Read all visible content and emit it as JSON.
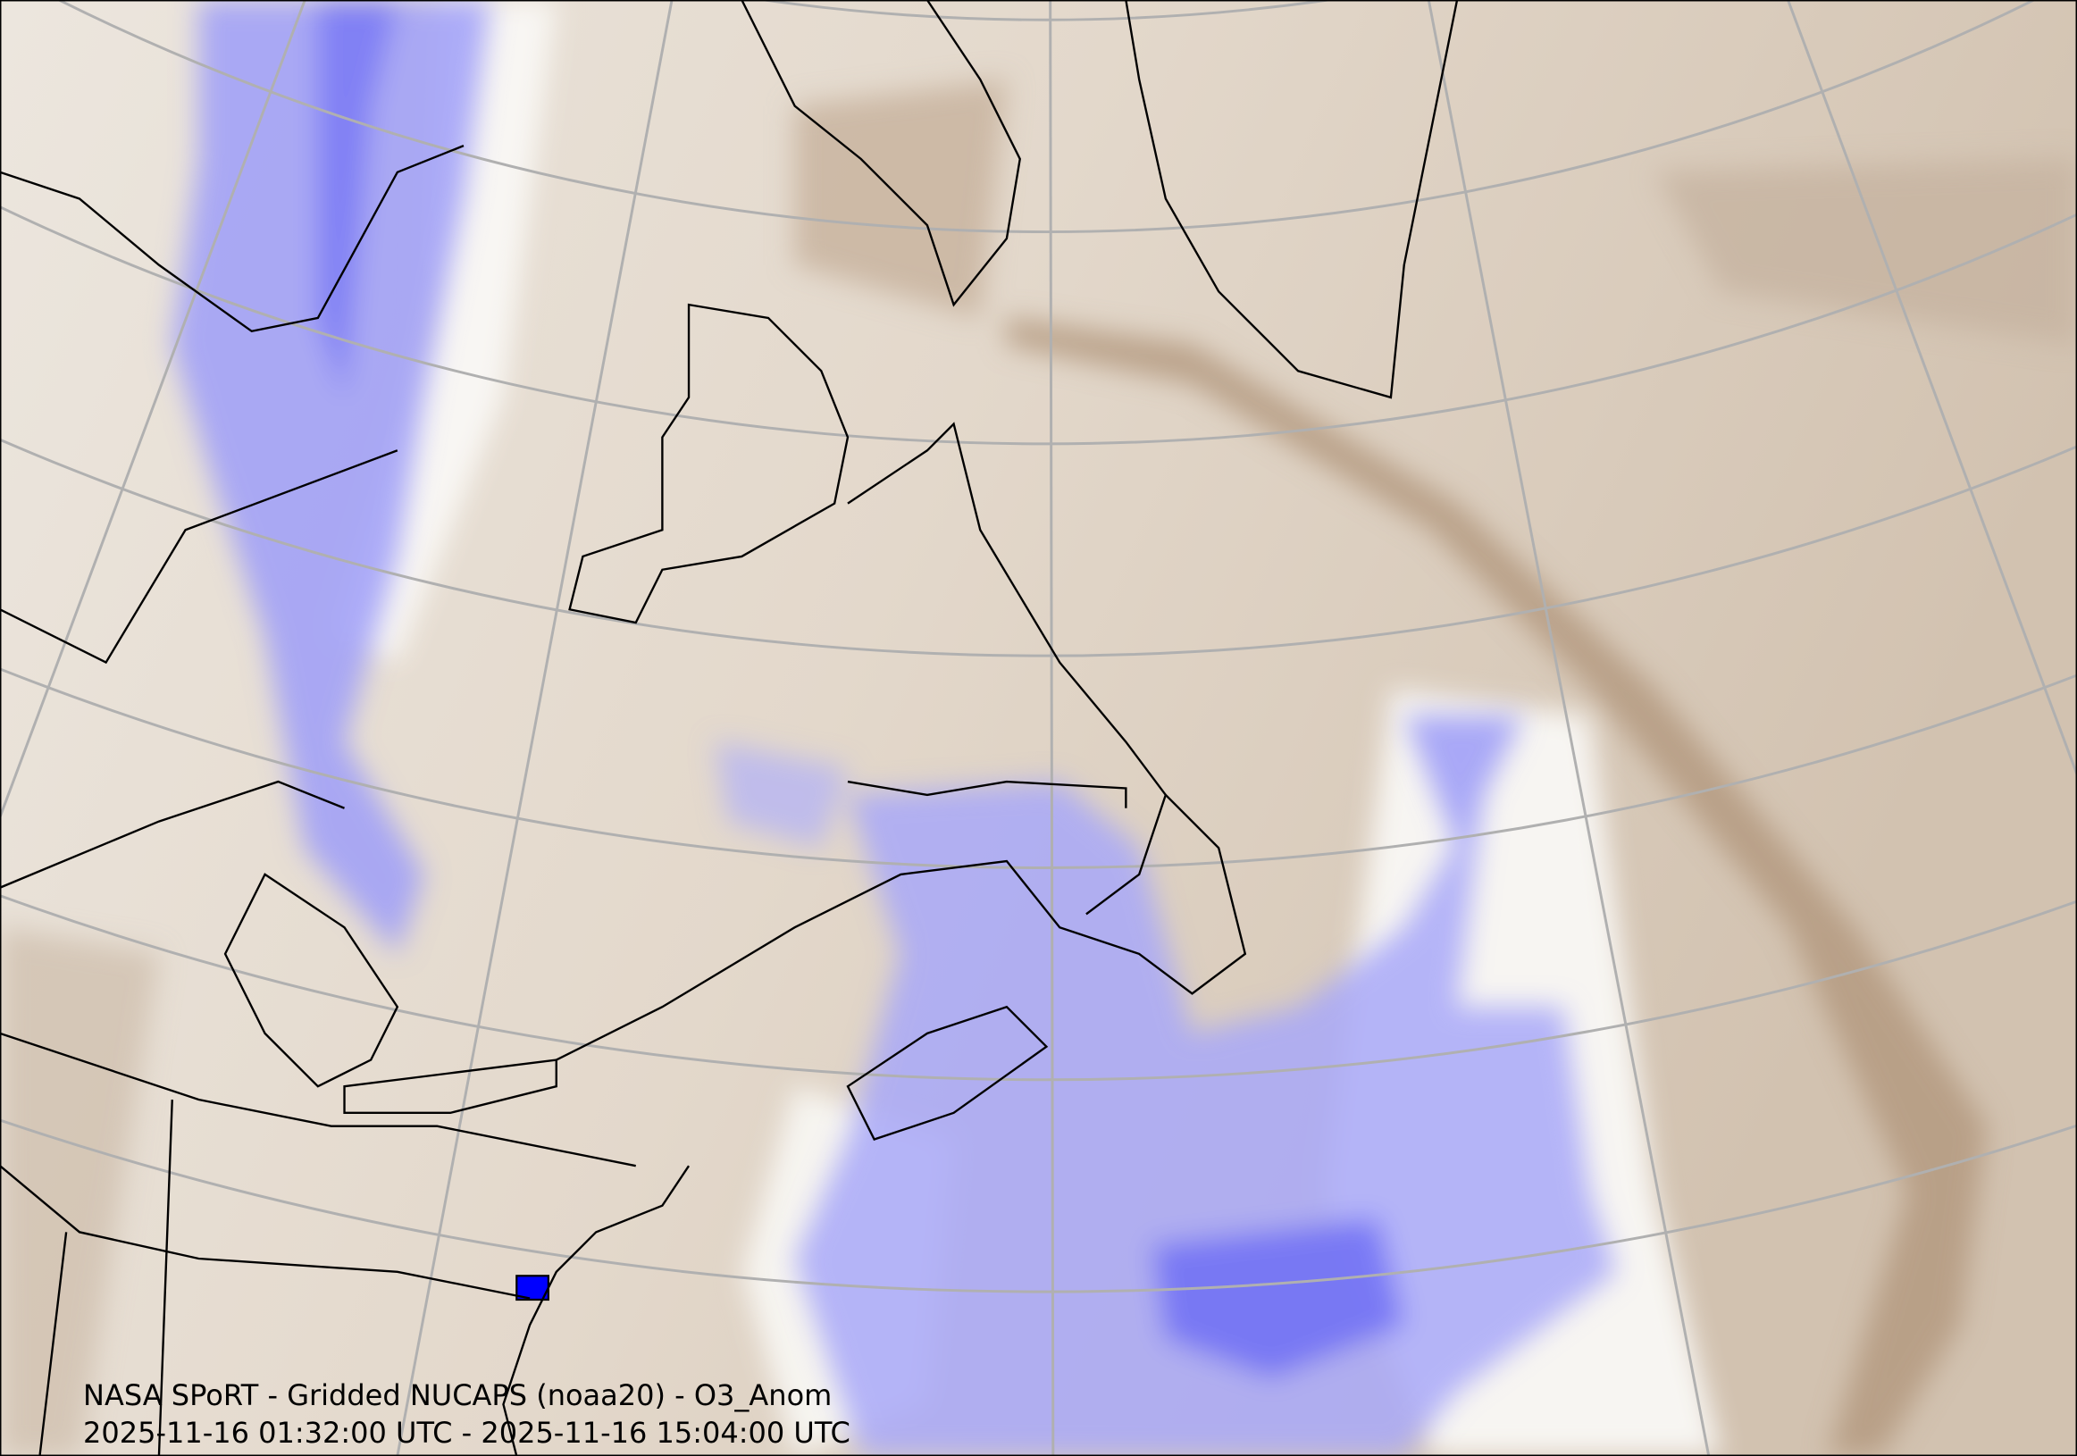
{
  "caption": {
    "title": "NASA SPoRT - Gridded NUCAPS (noaa20) - O3_Anom",
    "time_range": "2025-11-16 01:32:00 UTC - 2025-11-16 15:04:00 UTC"
  },
  "colors": {
    "positive_anomaly": "#b49a80",
    "neutral": "#f5f3f0",
    "negative_anomaly": "#6f6ff5",
    "graticule": "#b0b0b0",
    "coastline": "#000000"
  }
}
